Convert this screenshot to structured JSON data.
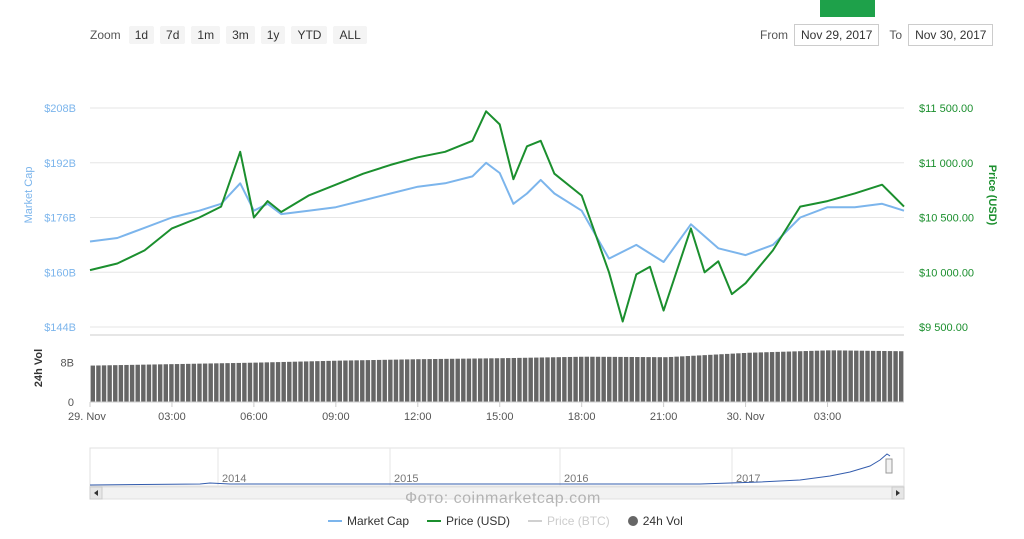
{
  "toolbar": {
    "zoom_label": "Zoom",
    "zoom_buttons": [
      "1d",
      "7d",
      "1m",
      "3m",
      "1y",
      "YTD",
      "ALL"
    ],
    "from_label": "From",
    "from_value": "Nov 29, 2017",
    "to_label": "To",
    "to_value": "Nov 30, 2017"
  },
  "watermark": "Фото: coinmarketcap.com",
  "colors": {
    "market_cap": "#7cb5ec",
    "price": "#1b8f2e",
    "price_btc": "#d0d0d0",
    "volume": "#666666",
    "brand": "#1ea14a"
  },
  "chart_data": {
    "type": "line",
    "x_tick_labels": [
      "29. Nov",
      "03:00",
      "06:00",
      "09:00",
      "12:00",
      "15:00",
      "18:00",
      "21:00",
      "30. Nov",
      "03:00"
    ],
    "x_hours": [
      0,
      3,
      6,
      9,
      12,
      15,
      18,
      21,
      24,
      27
    ],
    "x_range_hours": [
      0,
      29.8
    ],
    "left_axis": {
      "title": "Market Cap",
      "ticks": [
        "$208B",
        "$192B",
        "$176B",
        "$160B",
        "$144B"
      ],
      "tick_values": [
        208,
        192,
        176,
        160,
        144
      ],
      "range": [
        144,
        208
      ]
    },
    "right_axis": {
      "title": "Price (USD)",
      "ticks": [
        "$11 500.00",
        "$11 000.00",
        "$10 500.00",
        "$10 000.00",
        "$9 500.00"
      ],
      "tick_values": [
        11500,
        11000,
        10500,
        10000,
        9500
      ],
      "range": [
        9500,
        11500
      ]
    },
    "volume_axis": {
      "title": "24h Vol",
      "ticks": [
        "8B",
        "0"
      ],
      "tick_values": [
        8,
        0
      ],
      "range": [
        0,
        13
      ]
    },
    "series": [
      {
        "name": "Market Cap",
        "axis": "left",
        "x": [
          0,
          1,
          2,
          3,
          4,
          4.8,
          5.5,
          6,
          6.5,
          7,
          8,
          9,
          10,
          11,
          12,
          13,
          14,
          14.5,
          15,
          15.5,
          16,
          16.5,
          17,
          18,
          19,
          20,
          21,
          22,
          23,
          24,
          25,
          26,
          27,
          28,
          29,
          29.8
        ],
        "values": [
          169,
          170,
          173,
          176,
          178,
          180,
          186,
          178,
          180,
          177,
          178,
          179,
          181,
          183,
          185,
          186,
          188,
          192,
          189,
          180,
          183,
          187,
          183,
          178,
          164,
          168,
          163,
          174,
          167,
          165,
          168,
          176,
          179,
          179,
          180,
          178
        ]
      },
      {
        "name": "Price (USD)",
        "axis": "right",
        "x": [
          0,
          1,
          2,
          3,
          4,
          4.8,
          5.5,
          6,
          6.5,
          7,
          8,
          9,
          10,
          11,
          12,
          13,
          14,
          14.5,
          15,
          15.5,
          16,
          16.5,
          17,
          18,
          19,
          19.5,
          20,
          20.5,
          21,
          22,
          22.5,
          23,
          23.5,
          24,
          24.5,
          25,
          26,
          27,
          28,
          29,
          29.8
        ],
        "values": [
          10020,
          10080,
          10200,
          10400,
          10500,
          10600,
          11100,
          10500,
          10650,
          10550,
          10700,
          10800,
          10900,
          10980,
          11050,
          11100,
          11200,
          11470,
          11350,
          10850,
          11150,
          11200,
          10900,
          10700,
          10000,
          9550,
          9980,
          10050,
          9650,
          10400,
          10000,
          10100,
          9800,
          9900,
          10050,
          10200,
          10600,
          10650,
          10720,
          10800,
          10600
        ]
      },
      {
        "name": "Price (BTC)",
        "axis": "right",
        "hidden": true,
        "x": [],
        "values": []
      },
      {
        "name": "24h Vol",
        "axis": "volume",
        "type": "column",
        "x": [
          0,
          3,
          6,
          9,
          12,
          15,
          18,
          21,
          24,
          27,
          29.8
        ],
        "values": [
          7.4,
          7.7,
          8.0,
          8.4,
          8.7,
          8.9,
          9.2,
          9.1,
          10.0,
          10.5,
          10.3
        ]
      }
    ],
    "navigator": {
      "year_labels": [
        "2014",
        "2015",
        "2016",
        "2017"
      ]
    },
    "legend": {
      "placement": "bottom-center",
      "items": [
        "Market Cap",
        "Price (USD)",
        "Price (BTC)",
        "24h Vol"
      ]
    },
    "grid": true
  }
}
